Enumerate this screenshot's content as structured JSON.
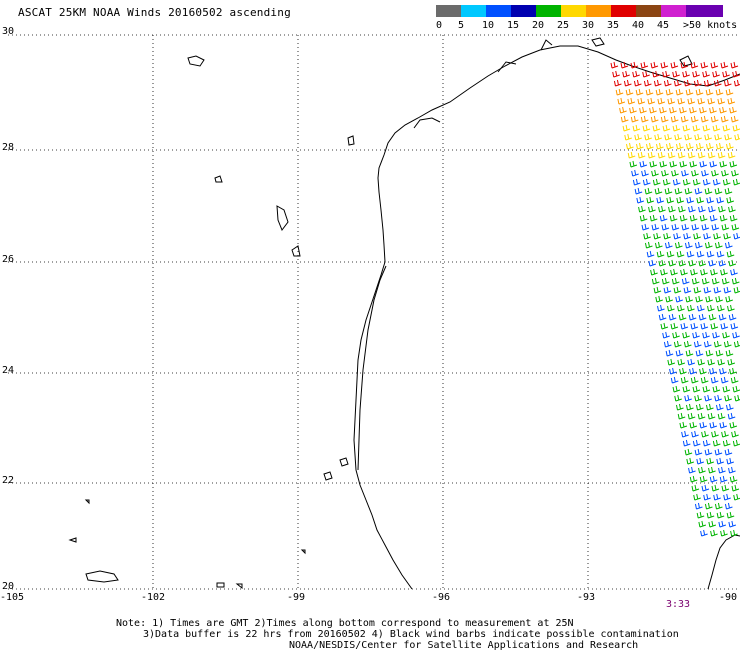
{
  "title": "ASCAT 25KM NOAA Winds 20160502 ascending",
  "legend": {
    "labels": [
      "0",
      "5",
      "10",
      "15",
      "20",
      "25",
      "30",
      "35",
      "40",
      "45",
      ">50 knots"
    ],
    "colors": [
      "#6b6b6b",
      "#00c8ff",
      "#0050ff",
      "#0000b0",
      "#00b400",
      "#ffd800",
      "#ff9800",
      "#e00000",
      "#8b4513",
      "#d020d0",
      "#6a00b0"
    ]
  },
  "axes": {
    "lat_labels": [
      "30",
      "28",
      "26",
      "24",
      "22",
      "20"
    ],
    "lon_labels": [
      "-105",
      "-102",
      "-99",
      "-96",
      "-93",
      "-90"
    ]
  },
  "timestamp": "3:33",
  "notes": [
    "Note: 1) Times are GMT 2)Times along bottom correspond to measurement at 25N",
    "3)Data buffer is 22 hrs from 20160502 4) Black wind barbs indicate possible contamination",
    "NOAA/NESDIS/Center for Satellite Applications and Research"
  ]
}
